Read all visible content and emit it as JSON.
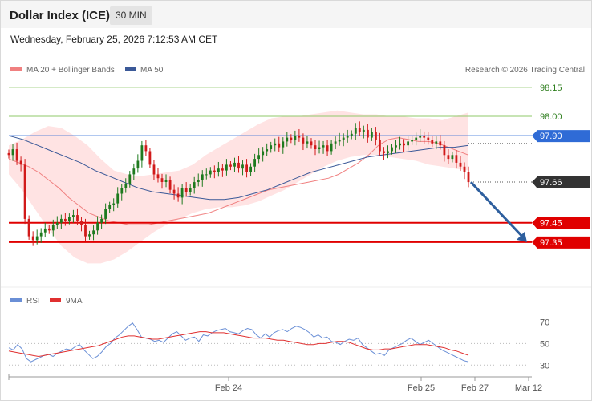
{
  "header": {
    "title": "Dollar Index (ICE)",
    "timeframe": "30 MIN",
    "datetime": "Wednesday, February 25, 2026 7:12:53 AM CET"
  },
  "legend": {
    "ma20": "MA 20 + Bollinger Bands",
    "ma50": "MA 50",
    "copyright": "Research © 2026 Trading Central",
    "rsi": "RSI",
    "rsi_ma": "9MA"
  },
  "colors": {
    "bull": "#1e7a1e",
    "bear": "#d11a1a",
    "ma20": "#f08080",
    "band_fill": "#ffe3e3",
    "ma50": "#3b5998",
    "resistance_line": "#2f6bd6",
    "support_line": "#e00000",
    "target_line": "#8fc86a",
    "arrow": "#2e5f9e",
    "rsi": "#6a8fd6",
    "rsi_ma": "#e03030"
  },
  "chart_data": [
    {
      "type": "candlestick",
      "ylim": [
        97.2,
        98.22
      ],
      "levels": [
        {
          "value": 98.15,
          "label": "98.15",
          "kind": "target"
        },
        {
          "value": 98.0,
          "label": "98.00",
          "kind": "target"
        },
        {
          "value": 97.9,
          "label": "97.90",
          "kind": "resistance"
        },
        {
          "value": 97.66,
          "label": "97.66",
          "kind": "last"
        },
        {
          "value": 97.45,
          "label": "97.45",
          "kind": "support"
        },
        {
          "value": 97.35,
          "label": "97.35",
          "kind": "support"
        }
      ],
      "closes": [
        97.8,
        97.83,
        97.77,
        97.75,
        97.47,
        97.38,
        97.36,
        97.38,
        97.4,
        97.42,
        97.41,
        97.44,
        97.45,
        97.47,
        97.46,
        97.48,
        97.49,
        97.46,
        97.44,
        97.38,
        97.39,
        97.41,
        97.45,
        97.47,
        97.52,
        97.54,
        97.55,
        97.6,
        97.63,
        97.65,
        97.7,
        97.73,
        97.77,
        97.85,
        97.82,
        97.75,
        97.7,
        97.68,
        97.66,
        97.67,
        97.62,
        97.6,
        97.58,
        97.63,
        97.61,
        97.63,
        97.66,
        97.67,
        97.7,
        97.7,
        97.72,
        97.71,
        97.73,
        97.72,
        97.75,
        97.74,
        97.76,
        97.73,
        97.75,
        97.71,
        97.74,
        97.78,
        97.8,
        97.82,
        97.83,
        97.85,
        97.86,
        97.84,
        97.87,
        97.89,
        97.88,
        97.9,
        97.89,
        97.86,
        97.87,
        97.85,
        97.83,
        97.84,
        97.85,
        97.82,
        97.86,
        97.87,
        97.88,
        97.89,
        97.9,
        97.91,
        97.94,
        97.92,
        97.93,
        97.89,
        97.92,
        97.88,
        97.82,
        97.81,
        97.82,
        97.84,
        97.85,
        97.86,
        97.85,
        97.87,
        97.88,
        97.89,
        97.9,
        97.89,
        97.88,
        97.86,
        97.87,
        97.85,
        97.8,
        97.78,
        97.8,
        97.76,
        97.74,
        97.71,
        97.66
      ],
      "ma20": [
        97.78,
        97.76,
        97.74,
        97.71,
        97.67,
        97.63,
        97.58,
        97.54,
        97.5,
        97.48,
        97.46,
        97.45,
        97.44,
        97.44,
        97.44,
        97.45,
        97.46,
        97.47,
        97.48,
        97.49,
        97.5,
        97.52,
        97.54,
        97.56,
        97.58,
        97.6,
        97.62,
        97.63,
        97.64,
        97.65,
        97.66,
        97.67,
        97.68,
        97.7,
        97.73,
        97.76,
        97.8,
        97.85,
        97.88,
        97.89,
        97.88,
        97.87,
        97.87,
        97.86,
        97.84,
        97.82,
        97.8
      ],
      "ma50": [
        97.9,
        97.88,
        97.85,
        97.82,
        97.79,
        97.76,
        97.72,
        97.69,
        97.66,
        97.63,
        97.61,
        97.6,
        97.59,
        97.58,
        97.57,
        97.57,
        97.58,
        97.6,
        97.62,
        97.65,
        97.68,
        97.71,
        97.73,
        97.75,
        97.77,
        97.79,
        97.8,
        97.81,
        97.82,
        97.83,
        97.84,
        97.84,
        97.85
      ],
      "bb_upper": [
        97.85,
        97.88,
        97.92,
        97.95,
        97.94,
        97.9,
        97.85,
        97.78,
        97.72,
        97.7,
        97.69,
        97.7,
        97.71,
        97.72,
        97.75,
        97.8,
        97.84,
        97.88,
        97.92,
        97.96,
        97.99,
        98.0,
        98.0,
        98.01,
        98.02,
        98.03,
        98.02,
        98.01,
        98.01,
        98.0,
        98.0,
        97.99,
        97.99,
        97.98,
        98.0,
        98.02
      ],
      "bb_lower": [
        97.7,
        97.62,
        97.52,
        97.42,
        97.33,
        97.27,
        97.24,
        97.24,
        97.26,
        97.3,
        97.35,
        97.4,
        97.44,
        97.47,
        97.5,
        97.52,
        97.53,
        97.53,
        97.54,
        97.56,
        97.59,
        97.62,
        97.66,
        97.7,
        97.74,
        97.77,
        97.79,
        97.8,
        97.8,
        97.79,
        97.78,
        97.77,
        97.75,
        97.74,
        97.73,
        97.72
      ],
      "projection": {
        "from": 97.66,
        "to": 97.35
      }
    },
    {
      "type": "line",
      "series": [
        {
          "name": "RSI"
        },
        {
          "name": "9MA"
        }
      ],
      "ylim": [
        25,
        80
      ],
      "yticks": [
        70,
        50,
        30
      ],
      "xticks": [
        "Feb 24",
        "Feb 25",
        "Feb 27",
        "Mar 12"
      ],
      "rsi": [
        46,
        44,
        49,
        45,
        36,
        33,
        35,
        37,
        39,
        40,
        38,
        41,
        43,
        45,
        44,
        47,
        49,
        44,
        40,
        36,
        38,
        42,
        47,
        50,
        55,
        58,
        62,
        66,
        69,
        63,
        56,
        55,
        54,
        52,
        53,
        51,
        55,
        59,
        61,
        57,
        53,
        55,
        56,
        52,
        58,
        57,
        60,
        62,
        63,
        64,
        61,
        60,
        59,
        62,
        64,
        63,
        58,
        55,
        59,
        56,
        60,
        62,
        63,
        61,
        64,
        66,
        65,
        63,
        60,
        56,
        58,
        55,
        56,
        52,
        51,
        49,
        52,
        54,
        53,
        55,
        49,
        46,
        43,
        40,
        41,
        39,
        44,
        46,
        48,
        50,
        53,
        55,
        52,
        49,
        51,
        53,
        50,
        47,
        44,
        42,
        40,
        38,
        36,
        34,
        33
      ],
      "rsi_ma": [
        43,
        42,
        41,
        40,
        39,
        38,
        39,
        40,
        41,
        42,
        43,
        44,
        45,
        46,
        47,
        48,
        50,
        52,
        54,
        56,
        57,
        57,
        56,
        55,
        54,
        54,
        55,
        56,
        57,
        58,
        59,
        60,
        61,
        61,
        60,
        60,
        60,
        59,
        58,
        57,
        56,
        55,
        55,
        55,
        54,
        53,
        53,
        52,
        51,
        50,
        49,
        49,
        50,
        50,
        51,
        52,
        52,
        51,
        49,
        47,
        45,
        44,
        44,
        45,
        45,
        46,
        47,
        48,
        49,
        49,
        49,
        48,
        47,
        46,
        44,
        43,
        41,
        39
      ]
    }
  ]
}
